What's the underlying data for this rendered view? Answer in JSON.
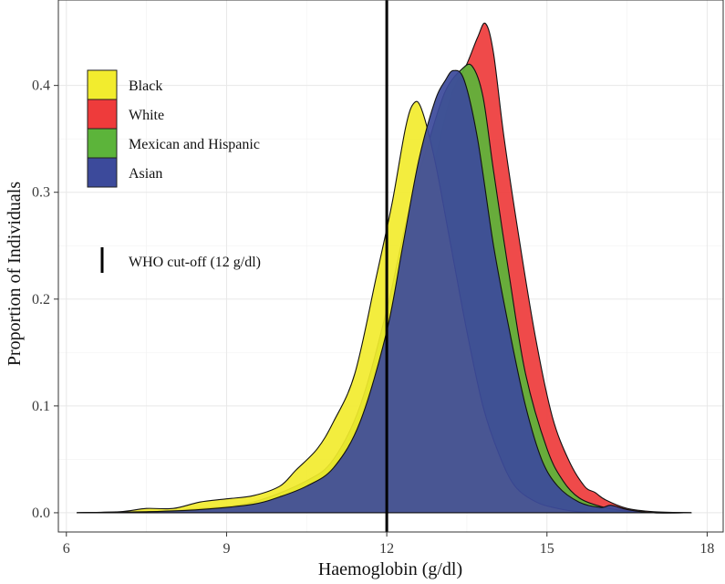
{
  "chart_data": {
    "type": "area",
    "xlabel": "Haemoglobin (g/dl)",
    "ylabel": "Proportion of Individuals",
    "xlim": [
      5.85,
      18.3
    ],
    "ylim": [
      -0.018,
      0.48
    ],
    "x_ticks": [
      6,
      9,
      12,
      15,
      18
    ],
    "x_tick_labels": [
      "6",
      "9",
      "12",
      "15",
      "18"
    ],
    "y_ticks": [
      0.0,
      0.1,
      0.2,
      0.3,
      0.4
    ],
    "y_tick_labels": [
      "0.0",
      "0.1",
      "0.2",
      "0.3",
      "0.4"
    ],
    "grid": true,
    "legend_position": "top-left",
    "reference_line": {
      "x": 12,
      "label": "WHO cut-off (12 g/dl)"
    },
    "series": [
      {
        "name": "White",
        "color": "#ee3b3b",
        "points": [
          [
            6.2,
            0
          ],
          [
            7.5,
            0.001
          ],
          [
            8.5,
            0.003
          ],
          [
            9.5,
            0.008
          ],
          [
            10.5,
            0.025
          ],
          [
            11,
            0.045
          ],
          [
            11.5,
            0.09
          ],
          [
            12,
            0.17
          ],
          [
            12.5,
            0.26
          ],
          [
            12.9,
            0.33
          ],
          [
            13.2,
            0.39
          ],
          [
            13.5,
            0.42
          ],
          [
            13.7,
            0.445
          ],
          [
            13.85,
            0.458
          ],
          [
            14.0,
            0.43
          ],
          [
            14.2,
            0.35
          ],
          [
            14.5,
            0.25
          ],
          [
            14.8,
            0.16
          ],
          [
            15.1,
            0.09
          ],
          [
            15.4,
            0.05
          ],
          [
            15.7,
            0.025
          ],
          [
            15.9,
            0.019
          ],
          [
            16.1,
            0.012
          ],
          [
            16.5,
            0.004
          ],
          [
            17,
            0.001
          ],
          [
            17.7,
            0
          ]
        ]
      },
      {
        "name": "Mexican and Hispanic",
        "color": "#5cb43a",
        "points": [
          [
            6.2,
            0
          ],
          [
            7.5,
            0.001
          ],
          [
            8.5,
            0.004
          ],
          [
            9.5,
            0.01
          ],
          [
            10.5,
            0.03
          ],
          [
            11,
            0.05
          ],
          [
            11.5,
            0.1
          ],
          [
            12,
            0.19
          ],
          [
            12.4,
            0.28
          ],
          [
            12.8,
            0.35
          ],
          [
            13.1,
            0.395
          ],
          [
            13.4,
            0.415
          ],
          [
            13.6,
            0.418
          ],
          [
            13.8,
            0.39
          ],
          [
            14.0,
            0.32
          ],
          [
            14.3,
            0.22
          ],
          [
            14.6,
            0.13
          ],
          [
            15.0,
            0.06
          ],
          [
            15.3,
            0.03
          ],
          [
            15.6,
            0.014
          ],
          [
            16.0,
            0.006
          ],
          [
            16.4,
            0.002
          ],
          [
            17,
            0
          ],
          [
            17.7,
            0
          ]
        ]
      },
      {
        "name": "Black",
        "color": "#f2ec2e",
        "points": [
          [
            6.2,
            0
          ],
          [
            7,
            0.001
          ],
          [
            7.5,
            0.004
          ],
          [
            8,
            0.004
          ],
          [
            8.5,
            0.01
          ],
          [
            9,
            0.013
          ],
          [
            9.5,
            0.016
          ],
          [
            10,
            0.025
          ],
          [
            10.3,
            0.04
          ],
          [
            10.7,
            0.06
          ],
          [
            11,
            0.085
          ],
          [
            11.4,
            0.13
          ],
          [
            11.8,
            0.22
          ],
          [
            12.1,
            0.29
          ],
          [
            12.35,
            0.36
          ],
          [
            12.5,
            0.383
          ],
          [
            12.65,
            0.378
          ],
          [
            12.9,
            0.33
          ],
          [
            13.2,
            0.25
          ],
          [
            13.5,
            0.17
          ],
          [
            13.8,
            0.1
          ],
          [
            14.1,
            0.055
          ],
          [
            14.4,
            0.025
          ],
          [
            14.8,
            0.01
          ],
          [
            15.2,
            0.004
          ],
          [
            15.6,
            0.001
          ],
          [
            16.2,
            0
          ],
          [
            17.7,
            0
          ]
        ]
      },
      {
        "name": "Asian",
        "color": "#3c4a9b",
        "points": [
          [
            6.2,
            0
          ],
          [
            7.5,
            0.001
          ],
          [
            8.5,
            0.003
          ],
          [
            9.5,
            0.008
          ],
          [
            10,
            0.015
          ],
          [
            10.5,
            0.025
          ],
          [
            11,
            0.042
          ],
          [
            11.5,
            0.085
          ],
          [
            12,
            0.17
          ],
          [
            12.3,
            0.25
          ],
          [
            12.6,
            0.33
          ],
          [
            12.9,
            0.385
          ],
          [
            13.1,
            0.405
          ],
          [
            13.25,
            0.414
          ],
          [
            13.45,
            0.405
          ],
          [
            13.7,
            0.35
          ],
          [
            14.0,
            0.25
          ],
          [
            14.3,
            0.17
          ],
          [
            14.6,
            0.1
          ],
          [
            14.9,
            0.05
          ],
          [
            15.2,
            0.025
          ],
          [
            15.6,
            0.01
          ],
          [
            16.0,
            0.005
          ],
          [
            16.2,
            0.007
          ],
          [
            16.5,
            0.003
          ],
          [
            17,
            0
          ],
          [
            17.7,
            0
          ]
        ]
      }
    ]
  },
  "legend": {
    "items": [
      {
        "label": "Black",
        "color": "#f2ec2e"
      },
      {
        "label": "White",
        "color": "#ee3b3b"
      },
      {
        "label": "Mexican and Hispanic",
        "color": "#5cb43a"
      },
      {
        "label": "Asian",
        "color": "#3c4a9b"
      }
    ],
    "reference_label": "WHO cut-off (12 g/dl)"
  }
}
